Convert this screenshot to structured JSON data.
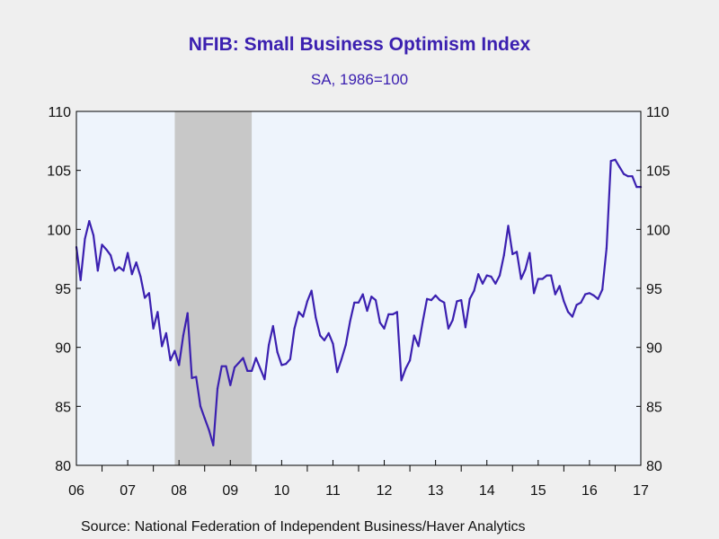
{
  "header": {
    "title": "NFIB: Small Business Optimism Index",
    "subtitle": "SA, 1986=100"
  },
  "footer": {
    "source": "Source:  National Federation of Independent Business/Haver Analytics"
  },
  "colors": {
    "line": "#3b20b0",
    "plot_background": "#eef4fc",
    "recession_band": "#c8c8c8",
    "page_background": "#efefef"
  },
  "chart_data": {
    "type": "line",
    "title": "NFIB: Small Business Optimism Index",
    "subtitle": "SA, 1986=100",
    "xlabel": "",
    "ylabel": "",
    "ylim": [
      80,
      110
    ],
    "y_ticks": [
      "80",
      "85",
      "90",
      "95",
      "100",
      "105",
      "110"
    ],
    "x_tick_labels": [
      "06",
      "07",
      "08",
      "09",
      "10",
      "11",
      "12",
      "13",
      "14",
      "15",
      "16",
      "17"
    ],
    "x_range": [
      2006.0,
      2017.0
    ],
    "grid": false,
    "dual_y_axis": true,
    "recession_shading": [
      [
        2007.917,
        2009.417
      ]
    ],
    "series": [
      {
        "values": [
          [
            2006.0,
            98.5
          ],
          [
            2006.083,
            95.7
          ],
          [
            2006.167,
            99.2
          ],
          [
            2006.25,
            100.7
          ],
          [
            2006.333,
            99.5
          ],
          [
            2006.417,
            96.5
          ],
          [
            2006.5,
            98.7
          ],
          [
            2006.583,
            98.3
          ],
          [
            2006.667,
            97.8
          ],
          [
            2006.75,
            96.5
          ],
          [
            2006.833,
            96.8
          ],
          [
            2006.917,
            96.5
          ],
          [
            2007.0,
            98.0
          ],
          [
            2007.083,
            96.2
          ],
          [
            2007.167,
            97.2
          ],
          [
            2007.25,
            96.0
          ],
          [
            2007.333,
            94.2
          ],
          [
            2007.417,
            94.6
          ],
          [
            2007.5,
            91.6
          ],
          [
            2007.583,
            93.0
          ],
          [
            2007.667,
            90.1
          ],
          [
            2007.75,
            91.2
          ],
          [
            2007.833,
            88.9
          ],
          [
            2007.917,
            89.7
          ],
          [
            2008.0,
            88.5
          ],
          [
            2008.083,
            91.0
          ],
          [
            2008.167,
            92.9
          ],
          [
            2008.25,
            87.4
          ],
          [
            2008.333,
            87.5
          ],
          [
            2008.417,
            85.0
          ],
          [
            2008.5,
            84.0
          ],
          [
            2008.583,
            83.0
          ],
          [
            2008.667,
            81.7
          ],
          [
            2008.75,
            86.5
          ],
          [
            2008.833,
            88.4
          ],
          [
            2008.917,
            88.4
          ],
          [
            2009.0,
            86.8
          ],
          [
            2009.083,
            88.3
          ],
          [
            2009.167,
            88.7
          ],
          [
            2009.25,
            89.1
          ],
          [
            2009.333,
            88.0
          ],
          [
            2009.417,
            88.0
          ],
          [
            2009.5,
            89.1
          ],
          [
            2009.583,
            88.2
          ],
          [
            2009.667,
            87.3
          ],
          [
            2009.75,
            90.2
          ],
          [
            2009.833,
            91.8
          ],
          [
            2009.917,
            89.6
          ],
          [
            2010.0,
            88.5
          ],
          [
            2010.083,
            88.6
          ],
          [
            2010.167,
            89.0
          ],
          [
            2010.25,
            91.6
          ],
          [
            2010.333,
            93.0
          ],
          [
            2010.417,
            92.6
          ],
          [
            2010.5,
            93.9
          ],
          [
            2010.583,
            94.8
          ],
          [
            2010.667,
            92.5
          ],
          [
            2010.75,
            91.0
          ],
          [
            2010.833,
            90.6
          ],
          [
            2010.917,
            91.2
          ],
          [
            2011.0,
            90.3
          ],
          [
            2011.083,
            87.9
          ],
          [
            2011.167,
            89.0
          ],
          [
            2011.25,
            90.2
          ],
          [
            2011.333,
            92.2
          ],
          [
            2011.417,
            93.8
          ],
          [
            2011.5,
            93.8
          ],
          [
            2011.583,
            94.5
          ],
          [
            2011.667,
            93.1
          ],
          [
            2011.75,
            94.3
          ],
          [
            2011.833,
            94.0
          ],
          [
            2011.917,
            92.1
          ],
          [
            2012.0,
            91.6
          ],
          [
            2012.083,
            92.8
          ],
          [
            2012.167,
            92.8
          ],
          [
            2012.25,
            93.0
          ],
          [
            2012.333,
            87.2
          ],
          [
            2012.417,
            88.2
          ],
          [
            2012.5,
            88.9
          ],
          [
            2012.583,
            91.0
          ],
          [
            2012.667,
            90.1
          ],
          [
            2012.75,
            92.2
          ],
          [
            2012.833,
            94.1
          ],
          [
            2012.917,
            94.0
          ],
          [
            2013.0,
            94.4
          ],
          [
            2013.083,
            94.0
          ],
          [
            2013.167,
            93.8
          ],
          [
            2013.25,
            91.6
          ],
          [
            2013.333,
            92.3
          ],
          [
            2013.417,
            93.9
          ],
          [
            2013.5,
            94.0
          ],
          [
            2013.583,
            91.7
          ],
          [
            2013.667,
            94.1
          ],
          [
            2013.75,
            94.8
          ],
          [
            2013.833,
            96.2
          ],
          [
            2013.917,
            95.4
          ],
          [
            2014.0,
            96.1
          ],
          [
            2014.083,
            96.0
          ],
          [
            2014.167,
            95.4
          ],
          [
            2014.25,
            96.1
          ],
          [
            2014.333,
            97.8
          ],
          [
            2014.417,
            100.3
          ],
          [
            2014.5,
            97.9
          ],
          [
            2014.583,
            98.1
          ],
          [
            2014.667,
            95.8
          ],
          [
            2014.75,
            96.6
          ],
          [
            2014.833,
            98.0
          ],
          [
            2014.917,
            94.6
          ],
          [
            2015.0,
            95.8
          ],
          [
            2015.083,
            95.8
          ],
          [
            2015.167,
            96.1
          ],
          [
            2015.25,
            96.1
          ],
          [
            2015.333,
            94.5
          ],
          [
            2015.417,
            95.2
          ],
          [
            2015.5,
            93.9
          ],
          [
            2015.583,
            93.0
          ],
          [
            2015.667,
            92.6
          ],
          [
            2015.75,
            93.6
          ],
          [
            2015.833,
            93.8
          ],
          [
            2015.917,
            94.5
          ],
          [
            2016.0,
            94.6
          ],
          [
            2016.083,
            94.4
          ],
          [
            2016.167,
            94.1
          ],
          [
            2016.25,
            94.9
          ],
          [
            2016.333,
            98.4
          ],
          [
            2016.417,
            105.8
          ],
          [
            2016.5,
            105.9
          ],
          [
            2016.583,
            105.3
          ],
          [
            2016.667,
            104.7
          ],
          [
            2016.75,
            104.5
          ],
          [
            2016.833,
            104.5
          ],
          [
            2016.917,
            103.6
          ],
          [
            2017.0,
            103.6
          ]
        ]
      }
    ]
  }
}
